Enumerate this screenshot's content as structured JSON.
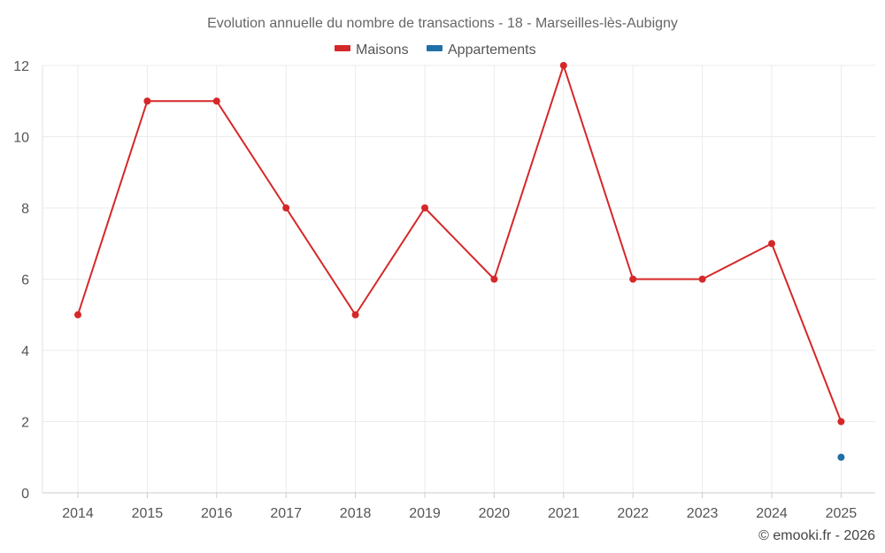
{
  "chart_data": {
    "type": "line",
    "title": "Evolution annuelle du nombre de transactions - 18 - Marseilles-lès-Aubigny",
    "categories": [
      "2014",
      "2015",
      "2016",
      "2017",
      "2018",
      "2019",
      "2020",
      "2021",
      "2022",
      "2023",
      "2024",
      "2025"
    ],
    "series": [
      {
        "name": "Maisons",
        "color": "#d62728",
        "values": [
          5,
          11,
          11,
          8,
          5,
          8,
          6,
          12,
          6,
          6,
          7,
          2
        ]
      },
      {
        "name": "Appartements",
        "color": "#1f6fa8",
        "values": [
          null,
          null,
          null,
          null,
          null,
          null,
          null,
          null,
          null,
          null,
          null,
          1
        ]
      }
    ],
    "xlabel": "",
    "ylabel": "",
    "ylim": [
      0,
      12
    ],
    "yticks": [
      0,
      2,
      4,
      6,
      8,
      10,
      12
    ],
    "grid": true,
    "legend_position": "top-center"
  },
  "credit": "© emooki.fr - 2026"
}
